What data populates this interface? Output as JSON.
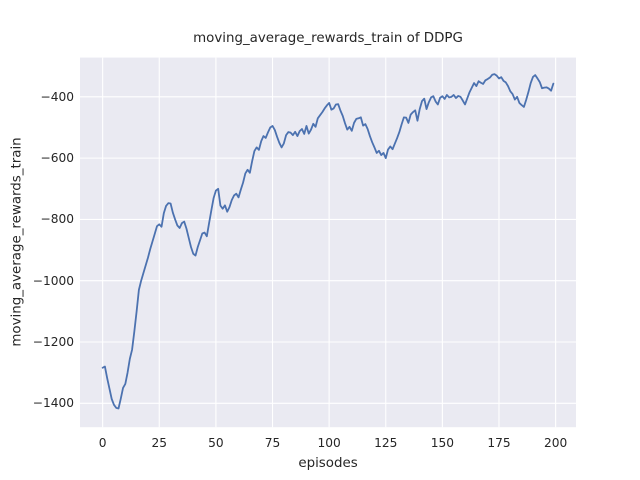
{
  "chart_data": {
    "type": "line",
    "title": "moving_average_rewards_train of DDPG",
    "xlabel": "episodes",
    "ylabel": "moving_average_rewards_train",
    "xlim": [
      -10,
      209
    ],
    "ylim": [
      -1478,
      -272
    ],
    "grid": true,
    "legend": false,
    "xticks": [
      0,
      25,
      50,
      75,
      100,
      125,
      150,
      175,
      200
    ],
    "yticks": [
      -400,
      -600,
      -800,
      -1000,
      -1200,
      -1400
    ],
    "xtick_labels": [
      "0",
      "25",
      "50",
      "75",
      "100",
      "125",
      "150",
      "175",
      "200"
    ],
    "ytick_labels": [
      "−400",
      "−600",
      "−800",
      "−1000",
      "−1200",
      "−1400"
    ],
    "style": {
      "axes_background": "#EAEAF2",
      "grid_color": "#FFFFFF",
      "line_color": "#4C72B0",
      "text_color": "#262626",
      "line_width": 1.8
    },
    "series": [
      {
        "name": "moving_average_rewards_train",
        "x_start": 0,
        "x_step": 1,
        "y": [
          -1284,
          -1280,
          -1318,
          -1352,
          -1386,
          -1405,
          -1415,
          -1417,
          -1385,
          -1350,
          -1337,
          -1300,
          -1255,
          -1225,
          -1165,
          -1100,
          -1030,
          -1000,
          -975,
          -950,
          -925,
          -897,
          -872,
          -847,
          -822,
          -816,
          -824,
          -780,
          -756,
          -747,
          -748,
          -778,
          -800,
          -820,
          -828,
          -812,
          -807,
          -830,
          -860,
          -890,
          -912,
          -918,
          -890,
          -868,
          -846,
          -843,
          -855,
          -812,
          -770,
          -730,
          -706,
          -700,
          -755,
          -765,
          -754,
          -775,
          -760,
          -737,
          -722,
          -716,
          -728,
          -703,
          -680,
          -650,
          -638,
          -648,
          -610,
          -577,
          -565,
          -573,
          -545,
          -528,
          -534,
          -516,
          -500,
          -495,
          -508,
          -530,
          -550,
          -565,
          -552,
          -525,
          -515,
          -517,
          -525,
          -514,
          -528,
          -512,
          -505,
          -521,
          -495,
          -520,
          -507,
          -488,
          -498,
          -470,
          -460,
          -450,
          -438,
          -428,
          -420,
          -442,
          -438,
          -425,
          -424,
          -445,
          -462,
          -486,
          -507,
          -498,
          -511,
          -485,
          -472,
          -470,
          -467,
          -494,
          -489,
          -505,
          -528,
          -548,
          -565,
          -583,
          -576,
          -590,
          -583,
          -600,
          -572,
          -562,
          -571,
          -553,
          -535,
          -515,
          -490,
          -467,
          -468,
          -485,
          -458,
          -450,
          -444,
          -478,
          -440,
          -414,
          -406,
          -440,
          -418,
          -402,
          -398,
          -415,
          -425,
          -403,
          -398,
          -407,
          -394,
          -402,
          -400,
          -394,
          -404,
          -397,
          -400,
          -412,
          -425,
          -405,
          -385,
          -370,
          -355,
          -365,
          -349,
          -354,
          -358,
          -346,
          -342,
          -337,
          -328,
          -326,
          -331,
          -340,
          -336,
          -348,
          -353,
          -365,
          -382,
          -391,
          -409,
          -400,
          -420,
          -427,
          -433,
          -410,
          -384,
          -355,
          -335,
          -329,
          -340,
          -352,
          -372,
          -370,
          -369,
          -373,
          -380,
          -357
        ]
      }
    ]
  }
}
